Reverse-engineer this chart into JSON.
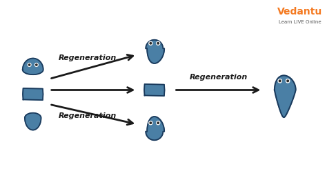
{
  "bg_color": "#ffffff",
  "planaria_fill": "#4a7fa5",
  "planaria_edge": "#1a3a5c",
  "arrow_color": "#1a1a1a",
  "text_color": "#1a1a1a",
  "regen_label": "Regeneration",
  "regen_fontsize": 8,
  "regen_fontweight": "bold",
  "vedantu_orange": "#f47920",
  "vedantu_text": "Vedantu",
  "vedantu_sub": "Learn LIVE Online",
  "figsize": [
    4.74,
    2.61
  ],
  "dpi": 100
}
